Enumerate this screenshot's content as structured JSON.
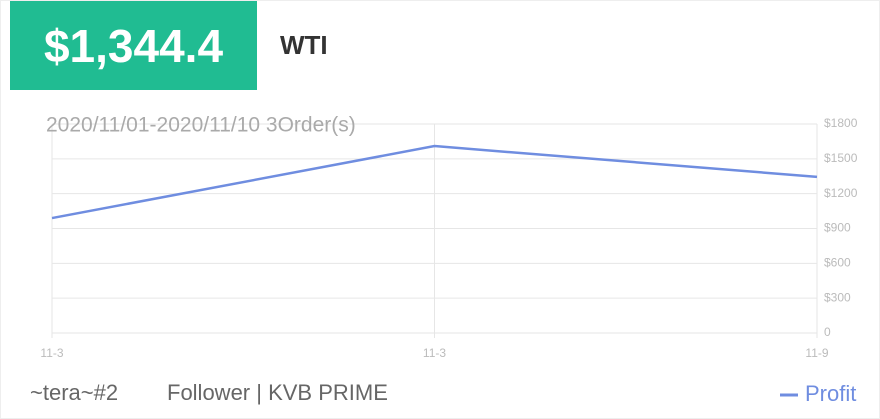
{
  "header": {
    "amount": "$1,344.4",
    "symbol": "WTI"
  },
  "chart_data": {
    "type": "line",
    "subtitle": "2020/11/01-2020/11/10 3Order(s)",
    "categories": [
      "11-3",
      "11-3",
      "11-9"
    ],
    "series": [
      {
        "name": "Profit",
        "color": "#6f8de0",
        "values": [
          990,
          1610,
          1344.4
        ]
      }
    ],
    "ylim": [
      0,
      1800
    ],
    "yticks": [
      0,
      {
        "value": 300,
        "label": "$300"
      },
      {
        "value": 600,
        "label": "$600"
      },
      {
        "value": 900,
        "label": "$900"
      },
      {
        "value": 1200,
        "label": "$1200"
      },
      {
        "value": 1500,
        "label": "$1500"
      },
      {
        "value": 1800,
        "label": "$1800"
      }
    ],
    "grid": true
  },
  "footer": {
    "user": "~tera~#2",
    "account": "Follower | KVB PRIME"
  }
}
